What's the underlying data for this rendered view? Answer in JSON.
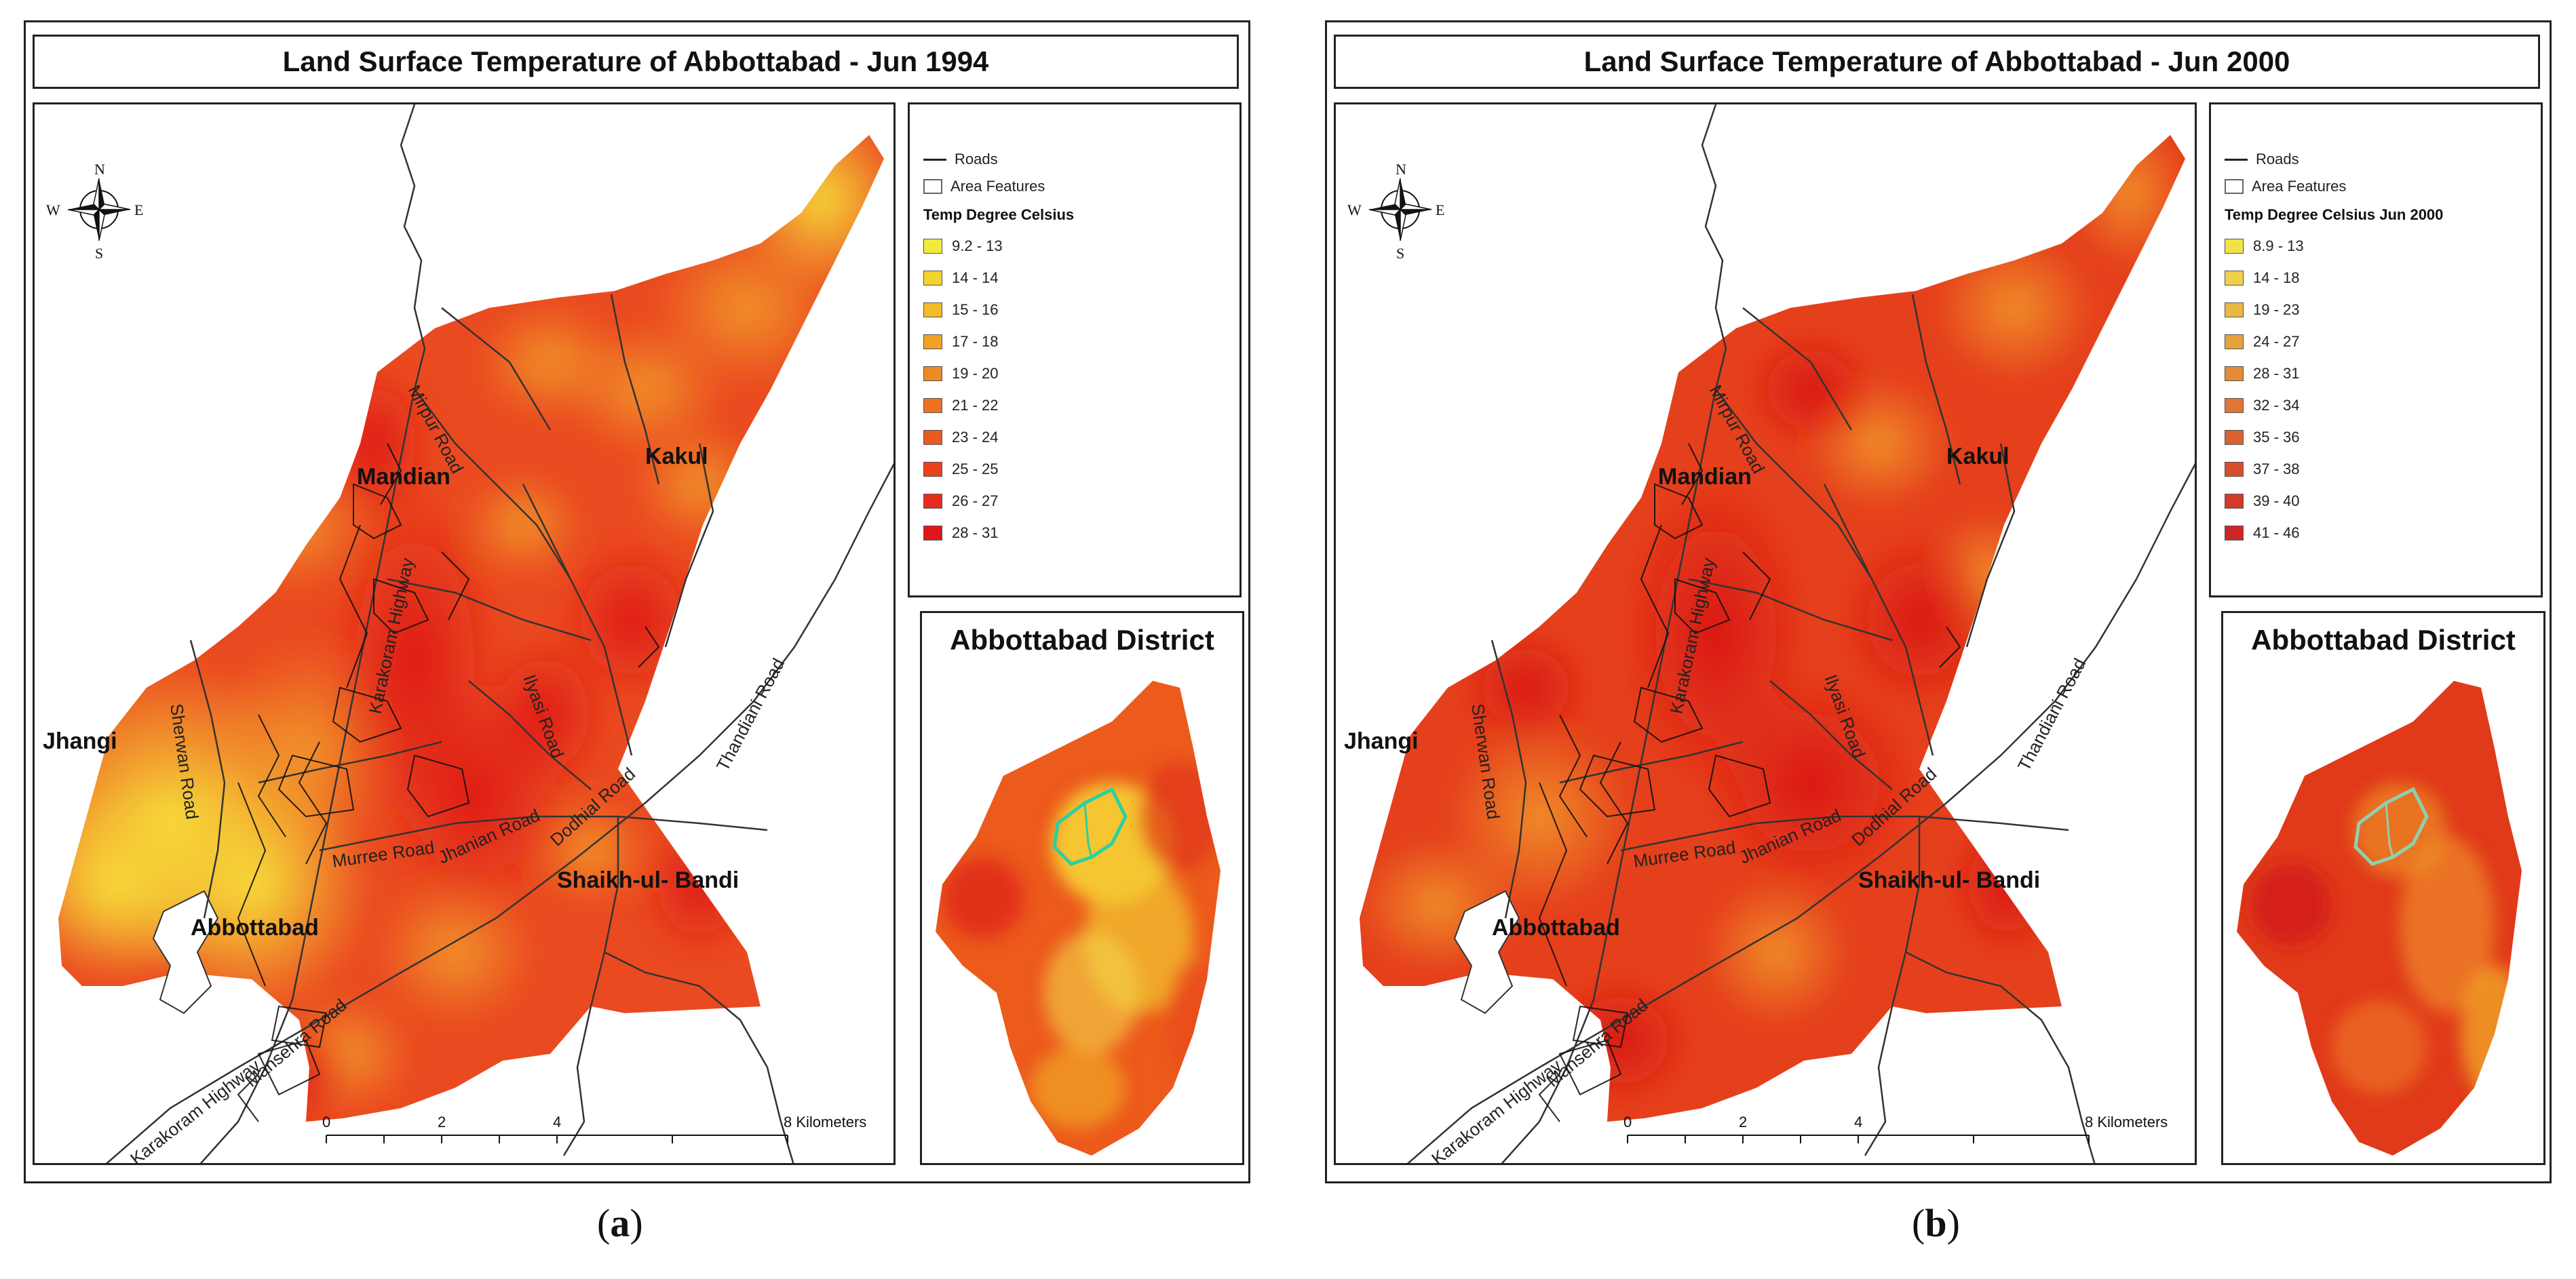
{
  "map_a": {
    "title": "Land Surface Temperature of Abbottabad - Jun 1994",
    "legend": {
      "roads": "Roads",
      "area_features": "Area Features",
      "heading": "Temp Degree Celsius",
      "classes": [
        {
          "label": "9.2 - 13",
          "color": "#f2ea3a"
        },
        {
          "label": "14 - 14",
          "color": "#f3d22e"
        },
        {
          "label": "15 - 16",
          "color": "#f2bb2a"
        },
        {
          "label": "17 - 18",
          "color": "#f0a226"
        },
        {
          "label": "19 - 20",
          "color": "#ee8a24"
        },
        {
          "label": "21 - 22",
          "color": "#ec7222"
        },
        {
          "label": "23 - 24",
          "color": "#ea5a20"
        },
        {
          "label": "25 - 25",
          "color": "#e8421e"
        },
        {
          "label": "26 - 27",
          "color": "#e62c1c"
        },
        {
          "label": "28 - 31",
          "color": "#e0161a"
        }
      ]
    },
    "inset_title": "Abbottabad District",
    "caption_letter": "a"
  },
  "map_b": {
    "title": "Land Surface Temperature of Abbottabad - Jun 2000",
    "legend": {
      "roads": "Roads",
      "area_features": "Area Features",
      "heading": "Temp Degree Celsius Jun 2000",
      "classes": [
        {
          "label": "8.9 - 13",
          "color": "#f2e24a"
        },
        {
          "label": "14 - 18",
          "color": "#eed04a"
        },
        {
          "label": "19 - 23",
          "color": "#eab844"
        },
        {
          "label": "24 - 27",
          "color": "#e6a23e"
        },
        {
          "label": "28 - 31",
          "color": "#e28c3a"
        },
        {
          "label": "32 - 34",
          "color": "#de7636"
        },
        {
          "label": "35 - 36",
          "color": "#da6232"
        },
        {
          "label": "37 - 38",
          "color": "#d64e2e"
        },
        {
          "label": "39 - 40",
          "color": "#d23a2a"
        },
        {
          "label": "41 - 46",
          "color": "#ce2626"
        }
      ]
    },
    "inset_title": "Abbottabad District",
    "caption_letter": "b"
  },
  "places": {
    "mandian": "Mandian",
    "kakul": "Kakul",
    "jhangi": "Jhangi",
    "abbottabad": "Abbottabad",
    "shaikh": "Shaikh-ul- Bandi"
  },
  "roads": {
    "mirpur": "Mirpur Road",
    "karakoram_a": "Karakoram Highway",
    "karakoram_b": "Karakoram Highway",
    "sherwan": "Sherwan Road",
    "ilyasi": "Ilyasi Road",
    "thandiani": "Thandiani Road",
    "mansehra": "Mansehra Road",
    "dodhial": "Dodhial Road",
    "murree": "Murree Road",
    "jhanian": "Jhanian Road"
  },
  "compass": {
    "n": "N",
    "s": "S",
    "e": "E",
    "w": "W"
  },
  "scale": {
    "t0": "0",
    "t2": "2",
    "t4": "4",
    "t8": "8 Kilometers"
  }
}
